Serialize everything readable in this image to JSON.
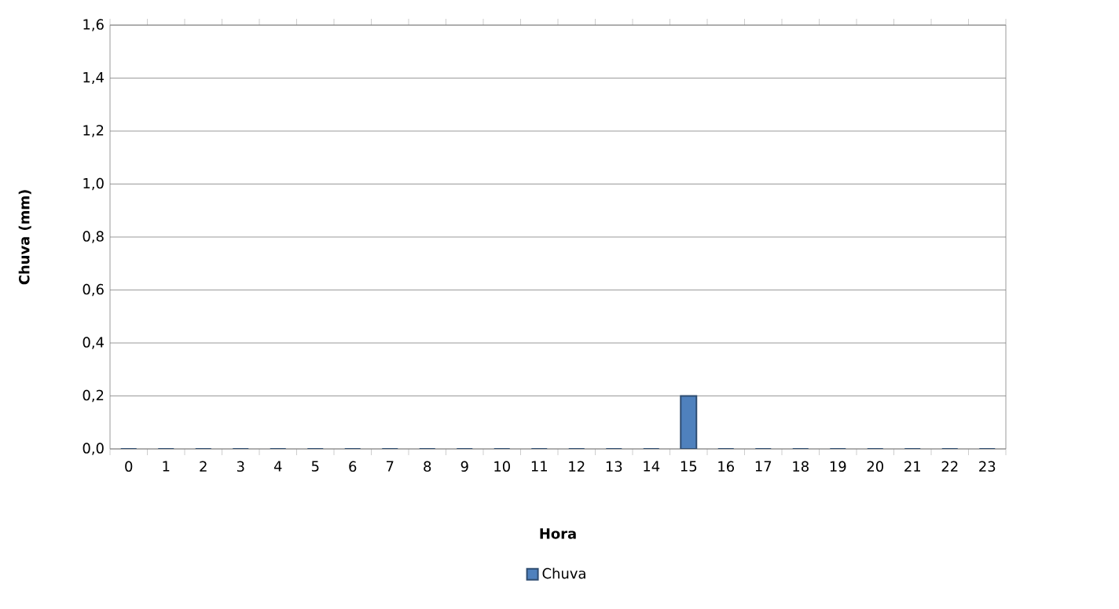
{
  "chart_data": {
    "type": "bar",
    "xlabel": "Hora",
    "ylabel": "Chuva (mm)",
    "categories": [
      "0",
      "1",
      "2",
      "3",
      "4",
      "5",
      "6",
      "7",
      "8",
      "9",
      "10",
      "11",
      "12",
      "13",
      "14",
      "15",
      "16",
      "17",
      "18",
      "19",
      "20",
      "21",
      "22",
      "23"
    ],
    "series": [
      {
        "name": "Chuva",
        "color": "#4f81bd",
        "values": [
          0,
          0,
          0,
          0,
          0,
          0,
          0,
          0,
          0,
          0,
          0,
          0,
          0,
          0,
          0,
          0.2,
          0,
          0,
          0,
          0,
          0,
          0,
          0,
          0
        ]
      }
    ],
    "ylim": [
      0,
      1.6
    ],
    "yticks": [
      {
        "value": 0,
        "label": "0,0"
      },
      {
        "value": 0.2,
        "label": "0,2"
      },
      {
        "value": 0.4,
        "label": "0,4"
      },
      {
        "value": 0.6,
        "label": "0,6"
      },
      {
        "value": 0.8,
        "label": "0,8"
      },
      {
        "value": 1.0,
        "label": "1,0"
      },
      {
        "value": 1.2,
        "label": "1,2"
      },
      {
        "value": 1.4,
        "label": "1,4"
      },
      {
        "value": 1.6,
        "label": "1,6"
      }
    ],
    "grid": "y",
    "legend": "bottom"
  }
}
